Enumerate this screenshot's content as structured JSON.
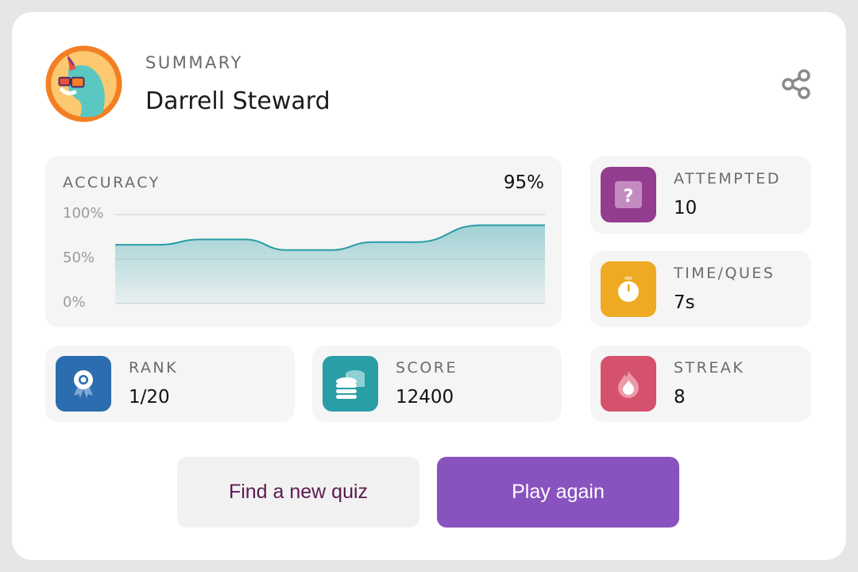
{
  "header": {
    "eyebrow": "SUMMARY",
    "player_name": "Darrell Steward",
    "share_icon": "share-icon",
    "avatar": "unicorn-avatar"
  },
  "accuracy": {
    "label": "ACCURACY",
    "value": "95%"
  },
  "chart_data": {
    "type": "area",
    "title": "",
    "x": [
      0,
      1,
      2,
      3,
      4,
      5,
      6,
      7,
      8.5,
      10
    ],
    "values": [
      66,
      66,
      72,
      72,
      60,
      60,
      69,
      69,
      88,
      88
    ],
    "ylim": [
      0,
      100
    ],
    "yticks": [
      "100%",
      "50%",
      "0%"
    ],
    "grid": true,
    "colors": {
      "line": "#2a9ca5",
      "fill": "#8cc8cc"
    }
  },
  "stats": [
    {
      "label": "ATTEMPTED",
      "value": "10",
      "icon": "question-icon",
      "color": "#943d8f"
    },
    {
      "label": "TIME/QUES",
      "value": "7s",
      "icon": "stopwatch-icon",
      "color": "#eeaa22"
    },
    {
      "label": "STREAK",
      "value": "8",
      "icon": "flame-icon",
      "color": "#d4526b"
    },
    {
      "label": "RANK",
      "value": "1/20",
      "icon": "award-ribbon-icon",
      "color": "#2b6daf"
    },
    {
      "label": "SCORE",
      "value": "12400",
      "icon": "coins-icon",
      "color": "#2a9ea6"
    }
  ],
  "buttons": {
    "find_new": "Find a new quiz",
    "play_again": "Play again",
    "play_color": "#8953bf",
    "text_dark": "#5a1a50"
  }
}
